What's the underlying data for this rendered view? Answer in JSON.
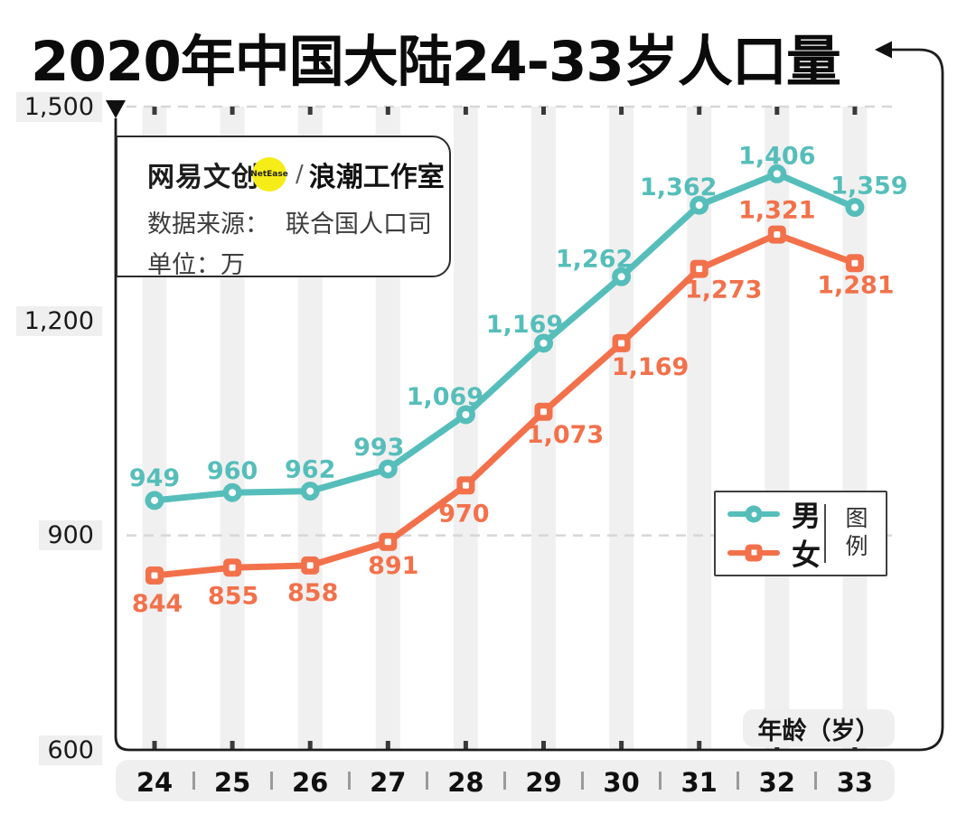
{
  "title": "2020年中国大陆24-33岁人口量",
  "info_box": {
    "brand": "网易文创",
    "brand_badge": "NetEase",
    "separator": "/",
    "studio": "浪潮工作室",
    "source_label": "数据来源：",
    "source_value": "联合国人口司",
    "unit_label": "单位：万"
  },
  "legend": {
    "caption": "图例",
    "items": [
      {
        "label": "男",
        "color": "#56BEBA",
        "marker": "circle"
      },
      {
        "label": "女",
        "color": "#F2714B",
        "marker": "square"
      }
    ]
  },
  "x_axis_title": "年龄（岁）",
  "colors": {
    "male": "#56BEBA",
    "female": "#F2714B",
    "column_band": "#F0F0F0",
    "gridline": "#D7D7D7",
    "axis": "#1D1D1D",
    "tick_label_bg": "#EFEFEF",
    "badge_yellow": "#F6EC17"
  },
  "chart_data": {
    "type": "line",
    "title": "2020年中国大陆24-33岁人口量",
    "xlabel": "年龄（岁）",
    "unit": "万",
    "source": "联合国人口司",
    "categories": [
      24,
      25,
      26,
      27,
      28,
      29,
      30,
      31,
      32,
      33
    ],
    "series": [
      {
        "name": "男",
        "color": "#56BEBA",
        "marker": "circle",
        "values": [
          949,
          960,
          962,
          993,
          1069,
          1169,
          1262,
          1362,
          1406,
          1359
        ],
        "label_offsets": [
          [
            0,
            -16
          ],
          [
            0,
            -15
          ],
          [
            0,
            -15
          ],
          [
            -10,
            -15
          ],
          [
            -23,
            -11
          ],
          [
            -21,
            -12
          ],
          [
            -30,
            -11
          ],
          [
            -23,
            -11
          ],
          [
            0,
            -11
          ],
          [
            16,
            -15
          ]
        ]
      },
      {
        "name": "女",
        "color": "#F2714B",
        "marker": "square",
        "values": [
          844,
          855,
          858,
          891,
          970,
          1073,
          1169,
          1273,
          1321,
          1281
        ],
        "label_offsets": [
          [
            3,
            40
          ],
          [
            1,
            40
          ],
          [
            3,
            39
          ],
          [
            6,
            35
          ],
          [
            -2,
            40
          ],
          [
            24,
            34
          ],
          [
            32,
            35
          ],
          [
            27,
            32
          ],
          [
            0,
            -18
          ],
          [
            1,
            33
          ]
        ]
      }
    ],
    "ylim": [
      600,
      1500
    ],
    "y_ticks": [
      {
        "value": 1500,
        "label": "1,500"
      },
      {
        "value": 1200,
        "label": "1,200"
      },
      {
        "value": 900,
        "label": "900"
      },
      {
        "value": 600,
        "label": "600"
      }
    ],
    "gridlines_dashed_at": [
      1500,
      900
    ],
    "grid": "horizontal-dashed + vertical light column bands",
    "legend_position": "inside-right-middle"
  }
}
